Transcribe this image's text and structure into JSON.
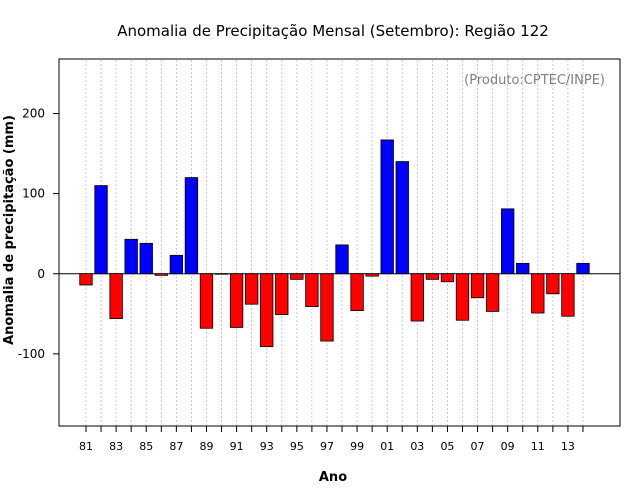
{
  "chart_data": {
    "type": "bar",
    "title": "Anomalia de Precipitação Mensal (Setembro): Região 122",
    "xlabel": "Ano",
    "ylabel": "Anomalia de precipitação (mm)",
    "credit": "(Produto:CPTEC/INPE)",
    "ylim": [
      -190,
      268
    ],
    "yticks": [
      -100,
      0,
      100,
      200
    ],
    "grid": "vertical-dotted",
    "categories": [
      "81",
      "82",
      "83",
      "84",
      "85",
      "86",
      "87",
      "88",
      "89",
      "90",
      "91",
      "92",
      "93",
      "94",
      "95",
      "96",
      "97",
      "98",
      "99",
      "00",
      "01",
      "02",
      "03",
      "04",
      "05",
      "06",
      "07",
      "08",
      "09",
      "10",
      "11",
      "12",
      "13",
      "14"
    ],
    "xtick_labels": [
      "81",
      "83",
      "85",
      "87",
      "89",
      "91",
      "93",
      "95",
      "97",
      "99",
      "01",
      "03",
      "05",
      "07",
      "09",
      "11",
      "13"
    ],
    "values": [
      -14,
      110,
      -56,
      43,
      38,
      -2,
      23,
      120,
      -68,
      0,
      -67,
      -38,
      -91,
      -51,
      -7,
      -41,
      -84,
      36,
      -46,
      -3,
      167,
      140,
      -59,
      -7,
      -10,
      -58,
      -30,
      -47,
      81,
      13,
      -49,
      -25,
      -53,
      13
    ],
    "colors": {
      "positive": "#0000ff",
      "negative": "#ff0000",
      "edge": "#000000",
      "grid": "#bebebe"
    }
  }
}
